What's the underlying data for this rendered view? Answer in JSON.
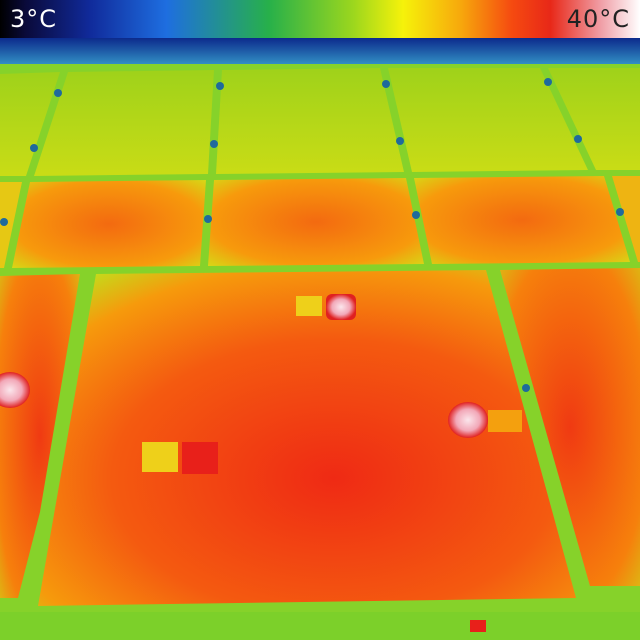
{
  "temperature_scale": {
    "min_label": "3°C",
    "max_label": "40°C",
    "min_celsius": 3,
    "max_celsius": 40,
    "palette": [
      "#000000",
      "#102a9a",
      "#1e6ee0",
      "#27b04a",
      "#9ad61e",
      "#f6f20a",
      "#f7a80c",
      "#f54a10",
      "#e82818",
      "#f0a0a8",
      "#ffffff"
    ]
  },
  "colors": {
    "cold_edge": "#1a4fb0",
    "cool_panel": "#a8d81a",
    "warm_panel": "#f7a00c",
    "hot_panel": "#f24a10",
    "hot_spot": "#f4c8d0",
    "panel_gap": "#7fcf2a",
    "clamp": "#1b6a9a"
  }
}
